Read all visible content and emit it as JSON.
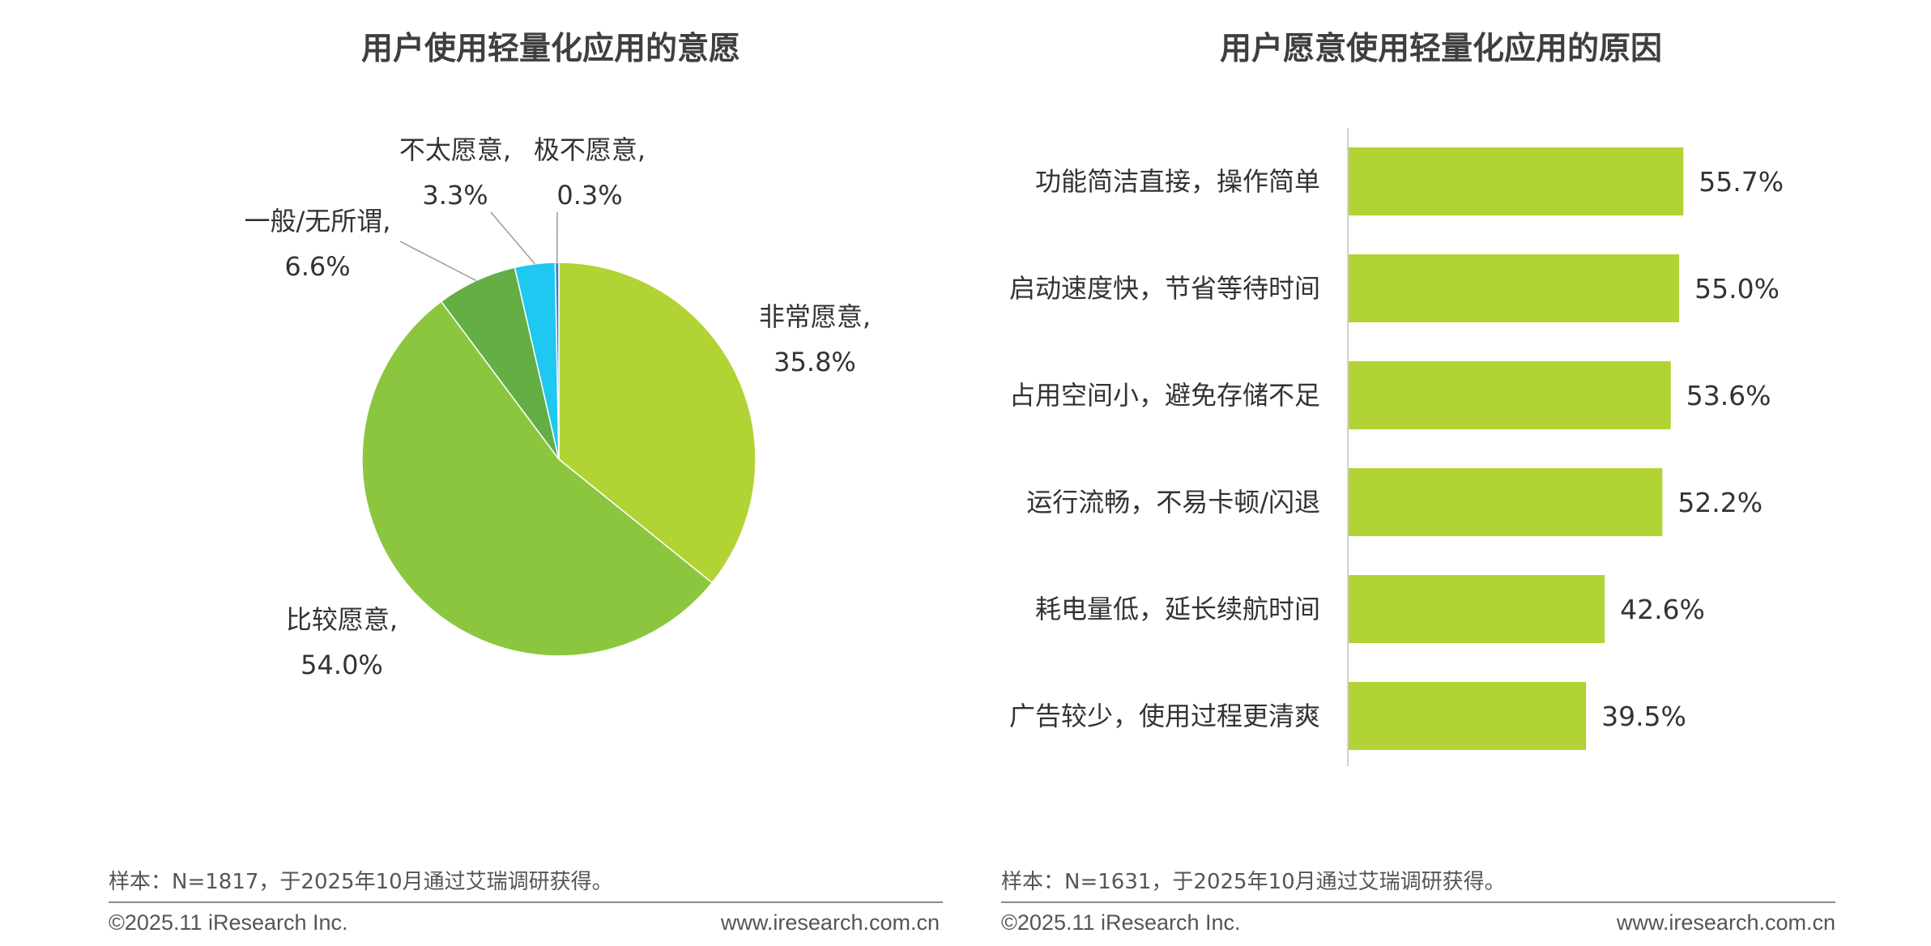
{
  "colors": {
    "pie": [
      "#b1d334",
      "#8cc63f",
      "#63af45",
      "#1ec8f0",
      "#3a7fc1"
    ],
    "bar": "#b1d334",
    "title": "#3f3f3f",
    "text": "#333333",
    "footer": "#555555"
  },
  "chart_data": [
    {
      "type": "pie",
      "title": "用户使用轻量化应用的意愿",
      "slices": [
        {
          "name": "非常愿意,",
          "value": 35.8,
          "value_label": "35.8%"
        },
        {
          "name": "比较愿意,",
          "value": 54.0,
          "value_label": "54.0%"
        },
        {
          "name": "一般/无所谓,",
          "value": 6.6,
          "value_label": "6.6%"
        },
        {
          "name": "不太愿意,",
          "value": 3.3,
          "value_label": "3.3%"
        },
        {
          "name": "极不愿意,",
          "value": 0.3,
          "value_label": "0.3%"
        }
      ]
    },
    {
      "type": "bar",
      "orientation": "horizontal",
      "title": "用户愿意使用轻量化应用的原因",
      "categories": [
        "功能简洁直接，操作简单",
        "启动速度快，节省等待时间",
        "占用空间小，避免存储不足",
        "运行流畅，不易卡顿/闪退",
        "耗电量低，延长续航时间",
        "广告较少，使用过程更清爽"
      ],
      "values": [
        55.7,
        55.0,
        53.6,
        52.2,
        42.6,
        39.5
      ],
      "value_labels": [
        "55.7%",
        "55.0%",
        "53.6%",
        "52.2%",
        "42.6%",
        "39.5%"
      ],
      "xlim": [
        0,
        100
      ],
      "grid": false
    }
  ],
  "footer": {
    "left": {
      "note": "样本：N=1817，于2025年10月通过艾瑞调研获得。",
      "copyright": "©2025.11 iResearch Inc.",
      "website": "www.iresearch.com.cn"
    },
    "right": {
      "note": "样本：N=1631，于2025年10月通过艾瑞调研获得。",
      "copyright": "©2025.11 iResearch Inc.",
      "website": "www.iresearch.com.cn"
    }
  }
}
